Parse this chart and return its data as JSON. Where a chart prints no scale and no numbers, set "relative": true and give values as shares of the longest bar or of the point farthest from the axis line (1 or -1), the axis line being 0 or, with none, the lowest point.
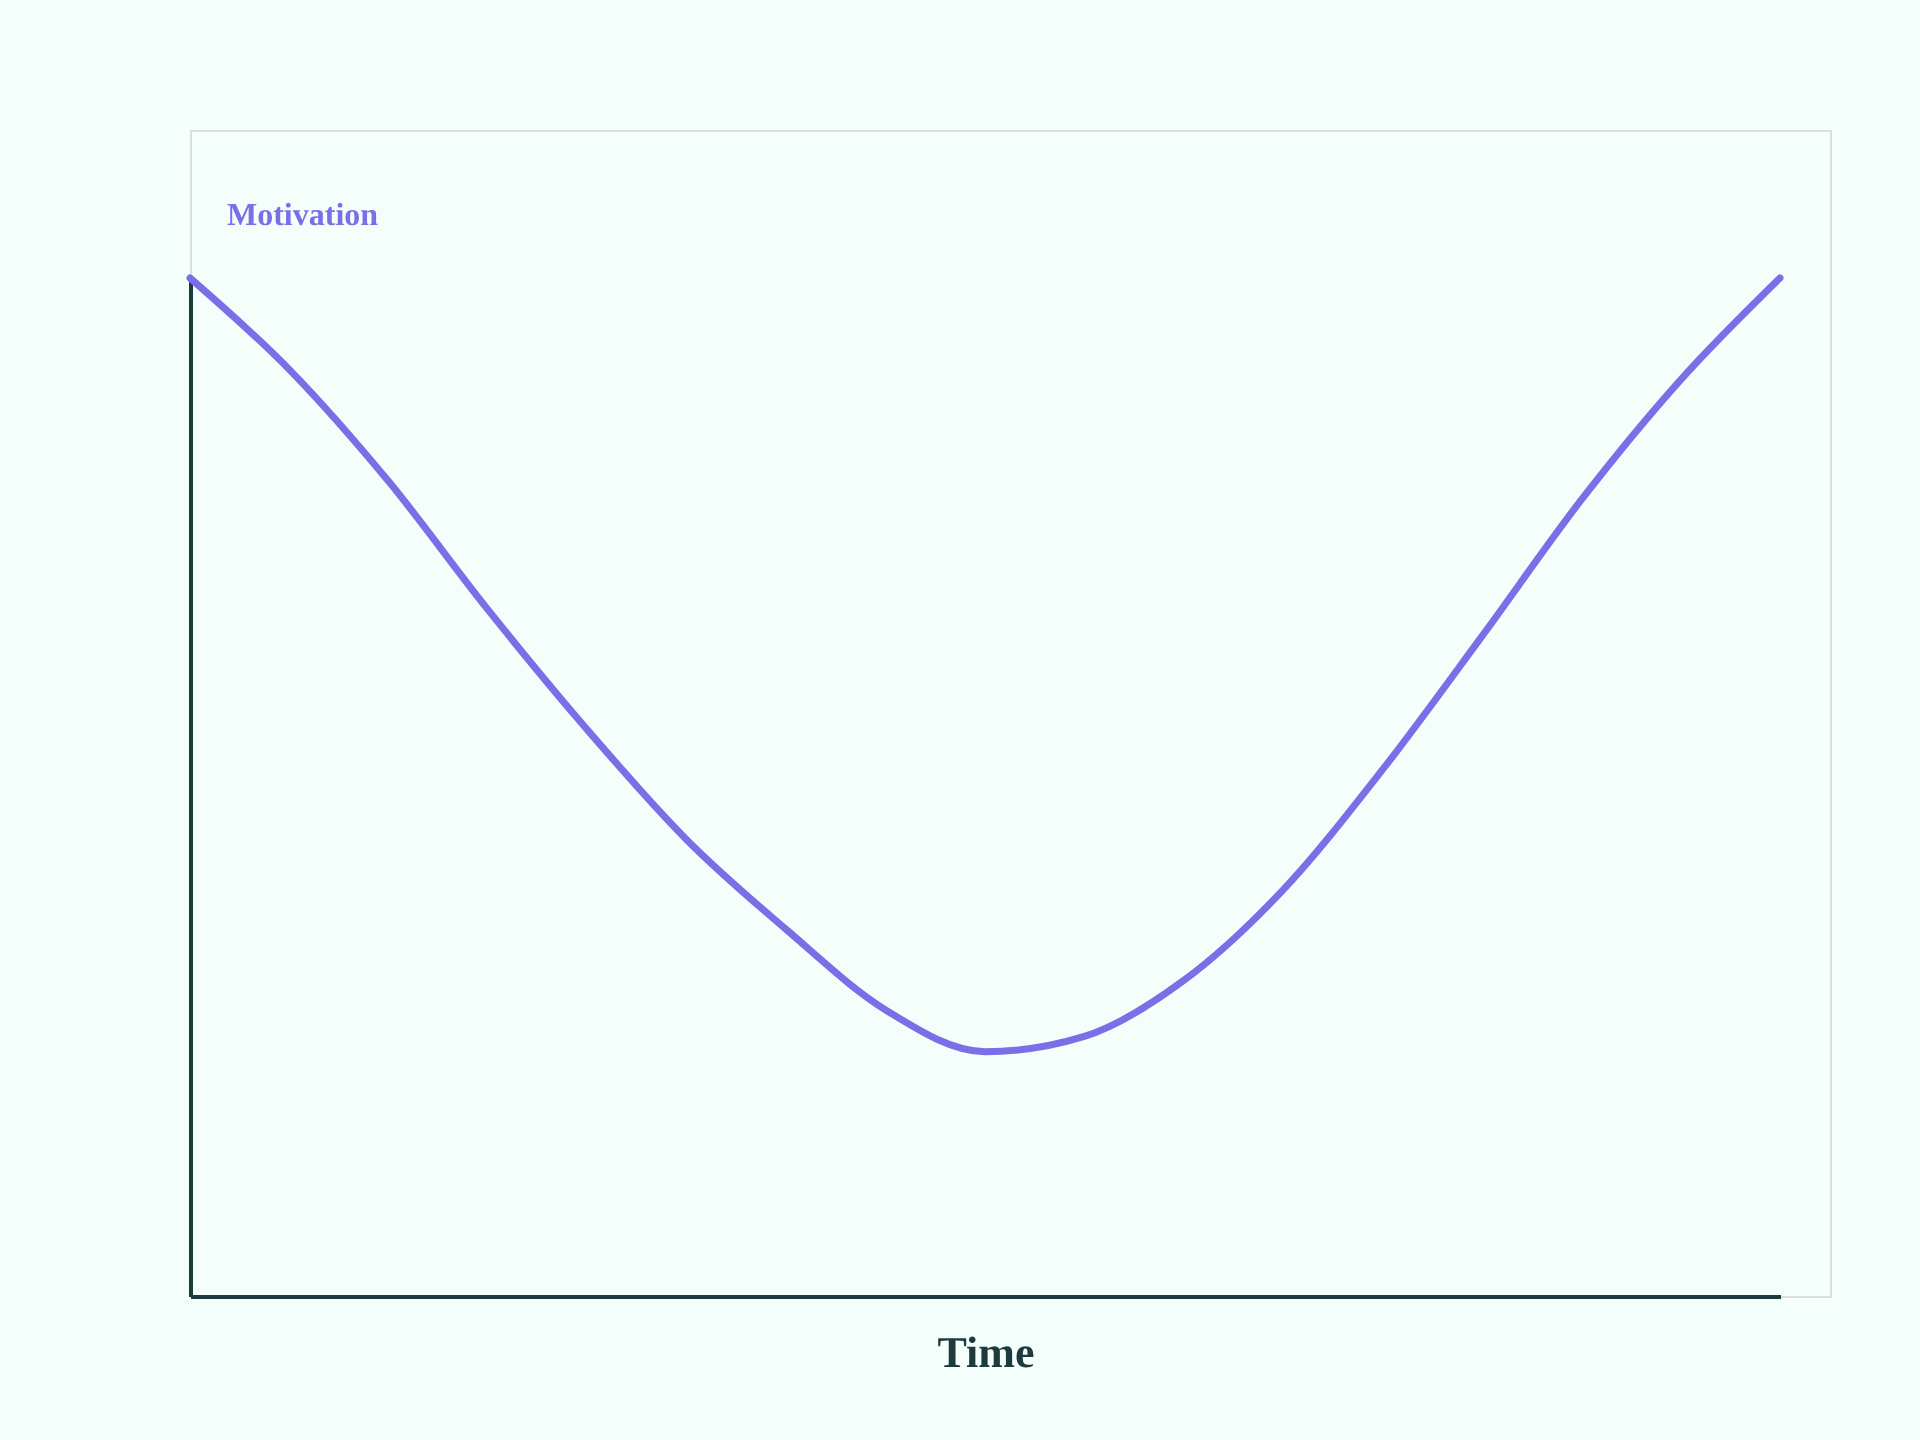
{
  "chart_data": {
    "type": "line",
    "relative": true,
    "xlabel": "Time",
    "ylabel": "Motivation",
    "tick_labels": false,
    "grid": false,
    "marker": "none",
    "line_style": "solid",
    "categories": [
      null,
      null,
      null,
      null,
      null,
      null,
      null,
      null,
      null,
      null,
      null,
      null,
      null,
      null,
      null,
      null,
      null
    ],
    "series": [
      {
        "color": "#7b6fe8",
        "values": [
          1,
          0.91,
          0.8,
          0.674,
          0.556,
          0.448,
          0.36,
          0.281,
          0.24,
          0.255,
          0.31,
          0.399,
          0.517,
          0.648,
          0.782,
          0.9,
          1
        ]
      }
    ]
  }
}
